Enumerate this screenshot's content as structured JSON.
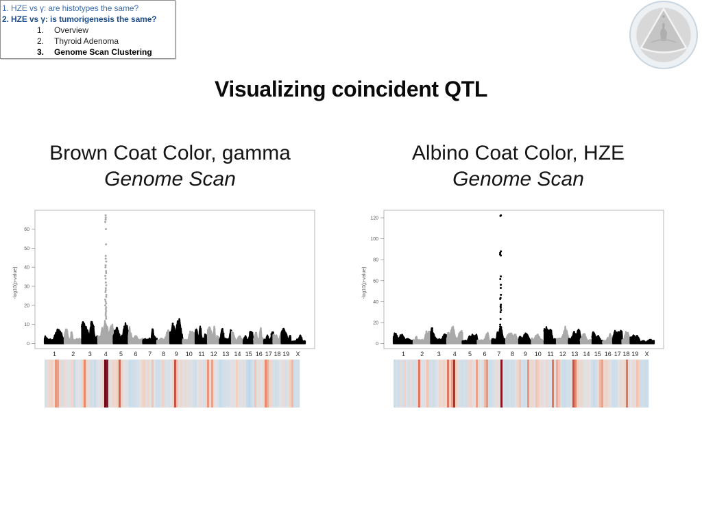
{
  "nav": {
    "sections": [
      {
        "label": "1. HZE vs γ: are histotypes the same?",
        "active": false
      },
      {
        "label": "2. HZE vs γ: is tumorigenesis the same?",
        "active": true
      }
    ],
    "subsections": [
      {
        "number": "1.",
        "label": "Overview",
        "active": false
      },
      {
        "number": "2.",
        "label": "Thyroid Adenoma",
        "active": false
      },
      {
        "number": "3.",
        "label": "Genome Scan Clustering",
        "active": true
      }
    ]
  },
  "slide": {
    "title": "Visualizing coincident QTL"
  },
  "panels": [
    {
      "title": "Brown Coat Color, gamma",
      "subtitle": "Genome Scan"
    },
    {
      "title": "Albino Coat Color, HZE",
      "subtitle": "Genome Scan"
    }
  ],
  "colors": {
    "dark_points": "#000000",
    "light_points": "#a9a9a9",
    "frame": "#b4b4b4",
    "nav_section": "#3b6db0",
    "nav_active": "#1f4e8c"
  },
  "chart_data": [
    {
      "type": "scatter",
      "subtype": "manhattan",
      "title": "Brown Coat Color, gamma - Genome Scan",
      "xlabel": "",
      "ylabel": "-log10(p-value)",
      "ylim": [
        -2.7,
        69.9
      ],
      "yticks": [
        0,
        10,
        20,
        30,
        40,
        50,
        60
      ],
      "grid": false,
      "categories": [
        "1",
        "2",
        "3",
        "4",
        "5",
        "6",
        "7",
        "8",
        "9",
        "10",
        "11",
        "12",
        "13",
        "14",
        "15",
        "16",
        "17",
        "18",
        "19",
        "X"
      ],
      "chromosome_shade": [
        "dark",
        "light",
        "dark",
        "light",
        "dark",
        "light",
        "dark",
        "light",
        "dark",
        "light",
        "dark",
        "light",
        "dark",
        "light",
        "dark",
        "light",
        "dark",
        "light",
        "dark",
        "dark"
      ],
      "chromosome_max": [
        7.5,
        7.5,
        11.4,
        12,
        10.8,
        8.7,
        7.5,
        6.9,
        13,
        6.3,
        9,
        9,
        7.2,
        6.3,
        6.3,
        8.2,
        6,
        5.8,
        7.8,
        4.2
      ],
      "peak": {
        "chromosome": "4",
        "position_frac": 0.5,
        "values": [
          67.2,
          66,
          65,
          63.7,
          60,
          52,
          46,
          44.5,
          43,
          41,
          40,
          38,
          37,
          35.5,
          34,
          32,
          30.5,
          29,
          28,
          27,
          25.5,
          24.5,
          23,
          22,
          21,
          20,
          19,
          18,
          17,
          16,
          15,
          14,
          13
        ]
      }
    },
    {
      "type": "scatter",
      "subtype": "manhattan",
      "title": "Albino Coat Color, HZE - Genome Scan",
      "xlabel": "",
      "ylabel": "-log10(p-value)",
      "ylim": [
        -4.9,
        127.2
      ],
      "yticks": [
        0,
        20,
        40,
        60,
        80,
        100,
        120
      ],
      "grid": false,
      "categories": [
        "1",
        "2",
        "3",
        "4",
        "5",
        "6",
        "7",
        "8",
        "9",
        "10",
        "11",
        "12",
        "13",
        "14",
        "15",
        "16",
        "17",
        "18",
        "19",
        "X"
      ],
      "chromosome_shade": [
        "dark",
        "light",
        "dark",
        "light",
        "dark",
        "light",
        "dark",
        "light",
        "dark",
        "light",
        "dark",
        "light",
        "dark",
        "light",
        "dark",
        "light",
        "dark",
        "light",
        "dark",
        "dark"
      ],
      "chromosome_max": [
        9.8,
        11.5,
        14.6,
        16.3,
        8.7,
        10.4,
        16,
        9.8,
        9.8,
        8.7,
        15.9,
        16.3,
        13.5,
        9.3,
        10.9,
        9.3,
        12.4,
        11.3,
        7.6,
        3.7
      ],
      "peak": {
        "chromosome": "7",
        "position_frac": 0.62,
        "values": [
          122.3,
          121.8,
          88,
          86.5,
          85,
          84,
          64,
          61.5,
          56,
          53,
          46.5,
          43.5,
          42.5,
          37,
          35.5,
          34,
          32,
          30,
          23.5,
          18,
          16
        ]
      }
    },
    {
      "type": "heatmap",
      "title": "Brown Coat Color, gamma - genome-wide signal strip",
      "vmin": -1,
      "vmax": 1,
      "colorscale": "blue-white-red",
      "values": [
        -0.2,
        0.1,
        0.2,
        0.3,
        0.05,
        0.55,
        0.5,
        0.2,
        -0.25,
        0.15,
        0.1,
        -0.05,
        0.05,
        0.2,
        -0.5,
        -0.1,
        0.0,
        -0.1,
        0.3,
        0.6,
        0.2,
        0.1,
        -0.3,
        -0.2,
        -0.45,
        -0.1,
        0.0,
        0.05,
        0.25,
        1.0,
        0.95,
        0.05,
        0.1,
        0.2,
        0.15,
        0.3,
        0.7,
        0.25,
        0.0,
        -0.05,
        0.05,
        -0.45,
        -0.3,
        -0.35,
        -0.2,
        -0.15,
        0.0,
        0.2,
        0.3,
        0.1,
        0.2,
        0.05,
        0.35,
        0.0,
        -0.3,
        -0.35,
        -0.2,
        0.25,
        -0.2,
        -0.1,
        -0.15,
        0.0,
        0.2,
        0.75,
        0.35,
        0.1,
        0.2,
        0.05,
        0.15,
        0.05,
        0.1,
        -0.1,
        -0.25,
        -0.3,
        0.0,
        0.1,
        0.05,
        -0.2,
        0.15,
        0.55,
        0.1,
        0.5,
        0.05,
        0.0,
        -0.15,
        -0.5,
        -0.3,
        -0.25,
        -0.15,
        -0.2,
        0.0,
        0.05,
        0.0,
        0.3,
        0.05,
        -0.05,
        0.1,
        -0.1,
        -0.45,
        -0.55,
        -0.4,
        -0.2,
        0.35,
        0.05,
        0.1,
        0.0,
        0.1,
        0.6,
        0.45,
        0.25,
        0.15,
        -0.2,
        -0.3,
        -0.2,
        0.0,
        0.05,
        0.1,
        -0.2,
        0.05,
        0.3,
        0.4,
        -0.3,
        -0.25,
        -0.3
      ]
    },
    {
      "type": "heatmap",
      "title": "Albino Coat Color, HZE - genome-wide signal strip",
      "vmin": -1,
      "vmax": 1,
      "colorscale": "blue-white-red",
      "values": [
        -0.3,
        -0.2,
        -0.35,
        0.15,
        -0.25,
        0.25,
        -0.1,
        -0.3,
        0.1,
        -0.25,
        -0.2,
        0.2,
        0.65,
        0.05,
        -0.1,
        0.1,
        0.35,
        -0.3,
        -0.2,
        -0.35,
        -0.15,
        0.0,
        0.2,
        0.1,
        0.25,
        0.1,
        0.65,
        0.3,
        0.5,
        0.85,
        0.3,
        0.1,
        -0.25,
        -0.35,
        -0.2,
        -0.3,
        0.15,
        0.25,
        0.1,
        0.0,
        0.5,
        0.1,
        0.0,
        -0.15,
        0.4,
        0.55,
        -0.3,
        -0.35,
        -0.2,
        0.05,
        0.1,
        0.0,
        0.95,
        -0.25,
        -0.3,
        -0.35,
        -0.2,
        -0.3,
        -0.25,
        0.05,
        0.2,
        0.35,
        -0.25,
        -0.35,
        -0.2,
        0.55,
        0.15,
        0.2,
        0.1,
        0.35,
        0.3,
        0.05,
        0.1,
        -0.05,
        0.15,
        -0.1,
        0.0,
        0.65,
        0.1,
        0.45,
        0.35,
        -0.2,
        -0.35,
        -0.4,
        -0.25,
        -0.3,
        0.1,
        0.75,
        0.6,
        0.3,
        0.15,
        0.2,
        0.05,
        -0.05,
        0.1,
        0.0,
        -0.3,
        -0.45,
        -0.3,
        0.1,
        0.4,
        0.5,
        0.2,
        0.25,
        0.15,
        -0.1,
        -0.3,
        -0.35,
        -0.25,
        0.0,
        0.15,
        0.05,
        0.2,
        0.65,
        0.1,
        0.0,
        0.15,
        -0.1,
        0.35,
        0.3,
        -0.35,
        -0.3,
        -0.4,
        -0.35
      ]
    }
  ]
}
